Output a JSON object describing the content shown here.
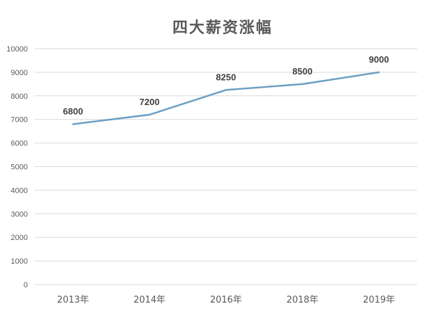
{
  "chart_data": {
    "type": "line",
    "title": "四大薪资涨幅",
    "xlabel": "",
    "ylabel": "",
    "categories": [
      "2013年",
      "2014年",
      "2016年",
      "2018年",
      "2019年"
    ],
    "series": [
      {
        "values": [
          6800,
          7200,
          8250,
          8500,
          9000
        ]
      }
    ],
    "data_labels": [
      "6800",
      "7200",
      "8250",
      "8500",
      "9000"
    ],
    "yticks": [
      0,
      1000,
      2000,
      3000,
      4000,
      5000,
      6000,
      7000,
      8000,
      9000,
      10000
    ],
    "ylim": [
      0,
      10000
    ],
    "grid": true,
    "legend": "none",
    "colors": {
      "line": "#6b9fc4",
      "grid": "#d9d9d9",
      "text": "#595959"
    }
  }
}
